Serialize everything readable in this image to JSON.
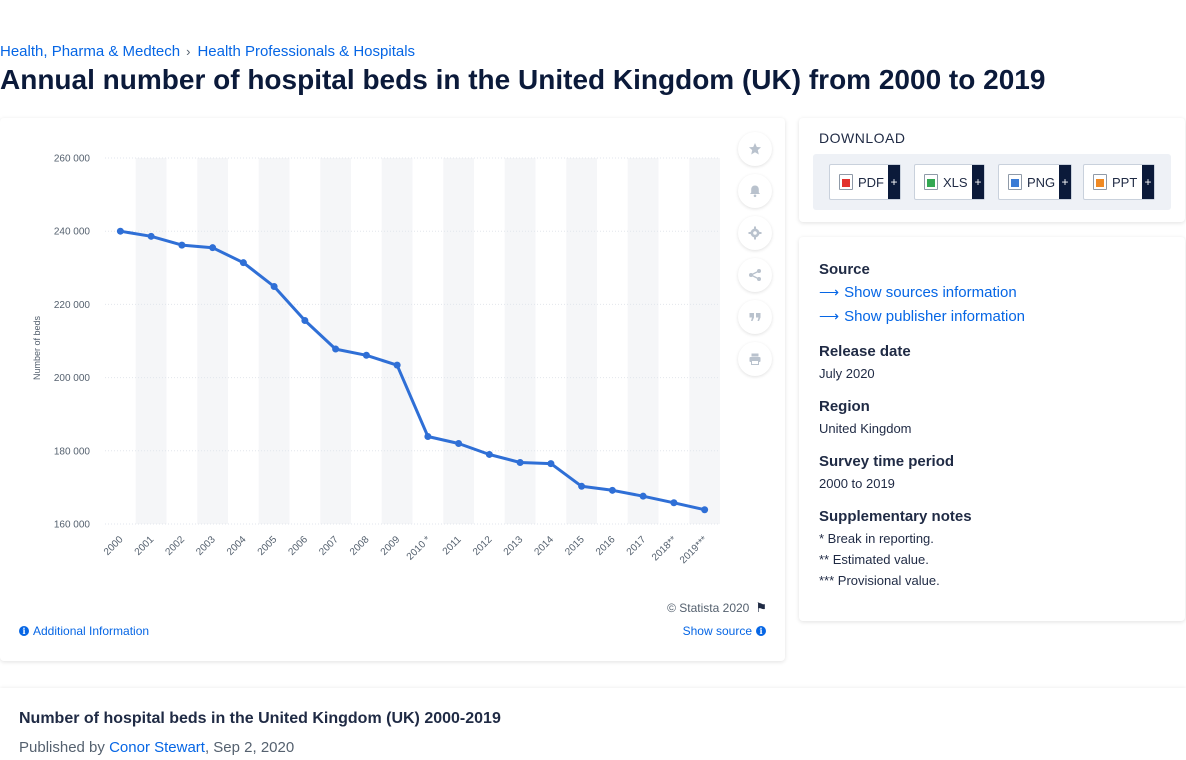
{
  "breadcrumb": {
    "items": [
      "Health, Pharma & Medtech",
      "Health Professionals & Hospitals"
    ],
    "separator": "›"
  },
  "page_title": "Annual number of hospital beds in the United Kingdom (UK) from 2000 to 2019",
  "toolbar_icons": [
    "star-icon",
    "bell-icon",
    "gear-icon",
    "share-icon",
    "quote-icon",
    "print-icon"
  ],
  "chart_footer": {
    "copyright": "© Statista 2020",
    "additional_info": "Additional Information",
    "show_source": "Show source"
  },
  "download": {
    "title": "DOWNLOAD",
    "buttons": [
      {
        "label": "PDF",
        "color": "#e2312d"
      },
      {
        "label": "XLS",
        "color": "#34a853"
      },
      {
        "label": "PNG",
        "color": "#3a7bd5"
      },
      {
        "label": "PPT",
        "color": "#f08a24"
      }
    ],
    "plus": "+"
  },
  "meta": {
    "source_heading": "Source",
    "show_sources": "Show sources information",
    "show_publisher": "Show publisher information",
    "release_heading": "Release date",
    "release_value": "July 2020",
    "region_heading": "Region",
    "region_value": "United Kingdom",
    "period_heading": "Survey time period",
    "period_value": "2000 to 2019",
    "notes_heading": "Supplementary notes",
    "notes": [
      "* Break in reporting.",
      "** Estimated value.",
      "*** Provisional value."
    ]
  },
  "publication": {
    "title": "Number of hospital beds in the United Kingdom (UK) 2000-2019",
    "published_by_prefix": "Published by",
    "author": "Conor Stewart",
    "date": ", Sep 2, 2020"
  },
  "chart_data": {
    "type": "line",
    "title": "",
    "xlabel": "",
    "ylabel": "Number of beds",
    "categories": [
      "2000",
      "2001",
      "2002",
      "2003",
      "2004",
      "2005",
      "2006",
      "2007",
      "2008",
      "2009",
      "2010 *",
      "2011",
      "2012",
      "2013",
      "2014",
      "2015",
      "2016",
      "2017",
      "2018**",
      "2019***"
    ],
    "series": [
      {
        "values": [
          240000,
          238600,
          236200,
          235500,
          231400,
          224900,
          215600,
          207800,
          206100,
          203400,
          183900,
          182000,
          179000,
          176800,
          176500,
          170300,
          169200,
          167600,
          165800,
          163900
        ]
      }
    ],
    "ylim": [
      160000,
      260000
    ],
    "yticks": [
      160000,
      180000,
      200000,
      220000,
      240000,
      260000
    ],
    "ytick_labels": [
      "160 000",
      "180 000",
      "200 000",
      "220 000",
      "240 000",
      "260 000"
    ],
    "line_color": "#2f6fd6",
    "grid": true,
    "legend": "none"
  }
}
